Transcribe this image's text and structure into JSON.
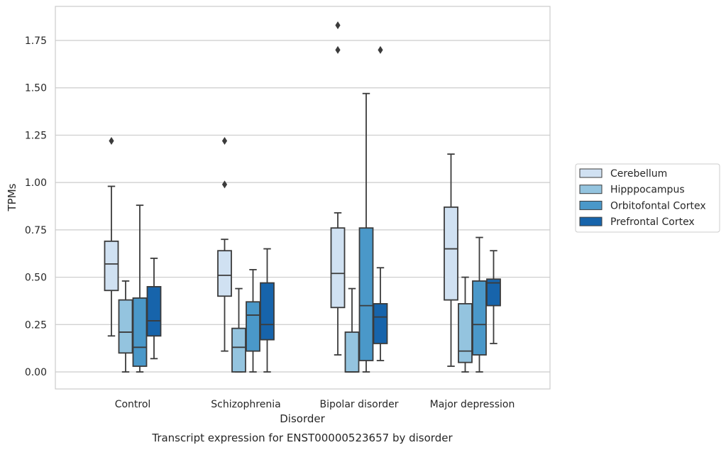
{
  "colors": {
    "Cerebellum": "#d0e1f2",
    "Hipppocampus": "#94c4df",
    "Orbitofontal Cortex": "#4a98c9",
    "Prefrontal Cortex": "#1764ab",
    "edge": "#3b3b3b",
    "grid": "#cccccc",
    "frame": "#cccccc"
  },
  "chart_data": {
    "type": "box",
    "title": "Transcript expression for ENST00000523657 by disorder",
    "xlabel": "Disorder",
    "ylabel": "TPMs",
    "ylim": [
      -0.09,
      1.93
    ],
    "yticks": [
      0.0,
      0.25,
      0.5,
      0.75,
      1.0,
      1.25,
      1.5,
      1.75
    ],
    "ytick_labels": [
      "0.00",
      "0.25",
      "0.50",
      "0.75",
      "1.00",
      "1.25",
      "1.50",
      "1.75"
    ],
    "categories": [
      "Control",
      "Schizophrenia",
      "Bipolar disorder",
      "Major depression"
    ],
    "grid": true,
    "legend_position": "right",
    "series": [
      {
        "name": "Cerebellum",
        "boxes": [
          {
            "whislo": 0.19,
            "q1": 0.43,
            "med": 0.57,
            "q3": 0.69,
            "whishi": 0.98,
            "fliers": [
              1.22
            ]
          },
          {
            "whislo": 0.11,
            "q1": 0.4,
            "med": 0.51,
            "q3": 0.64,
            "whishi": 0.7,
            "fliers": [
              1.22,
              0.99
            ]
          },
          {
            "whislo": 0.09,
            "q1": 0.34,
            "med": 0.52,
            "q3": 0.76,
            "whishi": 0.84,
            "fliers": [
              1.83,
              1.7
            ]
          },
          {
            "whislo": 0.03,
            "q1": 0.38,
            "med": 0.65,
            "q3": 0.87,
            "whishi": 1.15,
            "fliers": []
          }
        ]
      },
      {
        "name": "Hipppocampus",
        "boxes": [
          {
            "whislo": 0.0,
            "q1": 0.1,
            "med": 0.21,
            "q3": 0.38,
            "whishi": 0.48,
            "fliers": []
          },
          {
            "whislo": 0.0,
            "q1": 0.0,
            "med": 0.13,
            "q3": 0.23,
            "whishi": 0.44,
            "fliers": []
          },
          {
            "whislo": 0.0,
            "q1": 0.0,
            "med": 0.0,
            "q3": 0.21,
            "whishi": 0.44,
            "fliers": []
          },
          {
            "whislo": 0.0,
            "q1": 0.05,
            "med": 0.11,
            "q3": 0.36,
            "whishi": 0.5,
            "fliers": []
          }
        ]
      },
      {
        "name": "Orbitofontal Cortex",
        "boxes": [
          {
            "whislo": 0.0,
            "q1": 0.03,
            "med": 0.13,
            "q3": 0.39,
            "whishi": 0.88,
            "fliers": []
          },
          {
            "whislo": 0.0,
            "q1": 0.11,
            "med": 0.3,
            "q3": 0.37,
            "whishi": 0.54,
            "fliers": []
          },
          {
            "whislo": 0.0,
            "q1": 0.06,
            "med": 0.35,
            "q3": 0.76,
            "whishi": 1.47,
            "fliers": []
          },
          {
            "whislo": 0.0,
            "q1": 0.09,
            "med": 0.25,
            "q3": 0.48,
            "whishi": 0.71,
            "fliers": []
          }
        ]
      },
      {
        "name": "Prefrontal Cortex",
        "boxes": [
          {
            "whislo": 0.07,
            "q1": 0.19,
            "med": 0.27,
            "q3": 0.45,
            "whishi": 0.6,
            "fliers": []
          },
          {
            "whislo": 0.0,
            "q1": 0.17,
            "med": 0.25,
            "q3": 0.47,
            "whishi": 0.65,
            "fliers": []
          },
          {
            "whislo": 0.06,
            "q1": 0.15,
            "med": 0.29,
            "q3": 0.36,
            "whishi": 0.55,
            "fliers": [
              1.7
            ]
          },
          {
            "whislo": 0.15,
            "q1": 0.35,
            "med": 0.47,
            "q3": 0.49,
            "whishi": 0.64,
            "fliers": []
          }
        ]
      }
    ]
  }
}
